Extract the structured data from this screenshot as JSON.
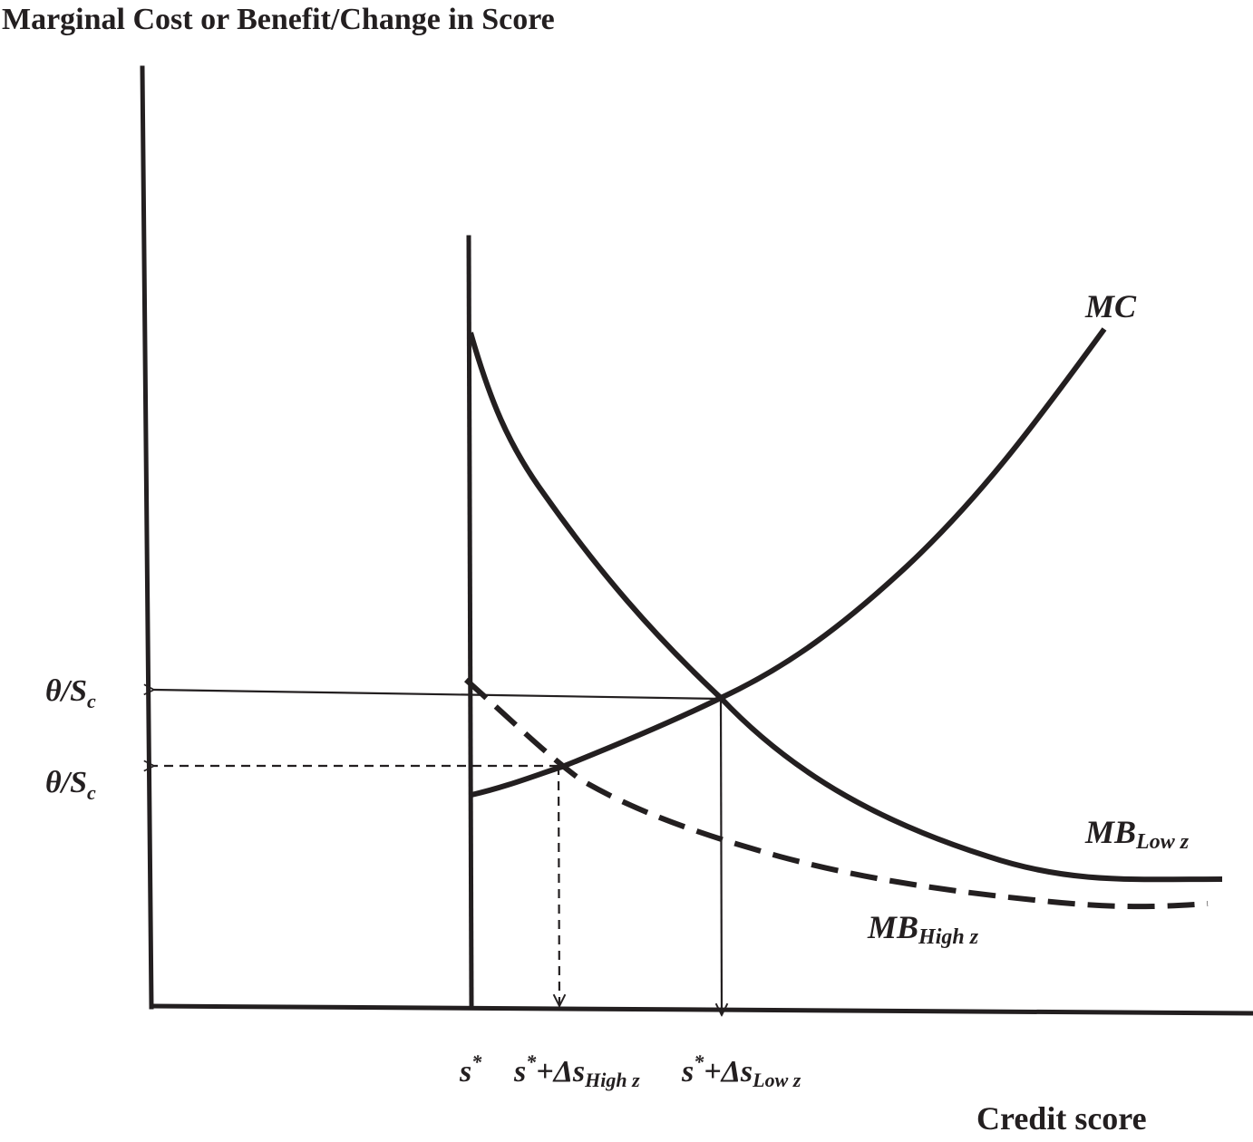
{
  "title": "Marginal Cost or Benefit/Change in Score",
  "x_axis_label": "Credit score",
  "y_labels": {
    "upper": {
      "main": "θ/S",
      "sub": "c"
    },
    "lower": {
      "main": "θ/S",
      "sub": "c"
    }
  },
  "x_labels": {
    "s_star": {
      "main": "s",
      "sup": "*"
    },
    "s_high": {
      "main": "s",
      "sup": "*",
      "rest": "+Δs",
      "sub": "High z"
    },
    "s_low": {
      "main": "s",
      "sup": "*",
      "rest": "+Δs",
      "sub": "Low z"
    }
  },
  "curve_labels": {
    "mc": {
      "main": "MC"
    },
    "mb_low": {
      "main": "MB",
      "sub": "Low z"
    },
    "mb_high": {
      "main": "MB",
      "sub": "High z"
    }
  },
  "colors": {
    "ink": "#231f20",
    "background": "#ffffff"
  }
}
